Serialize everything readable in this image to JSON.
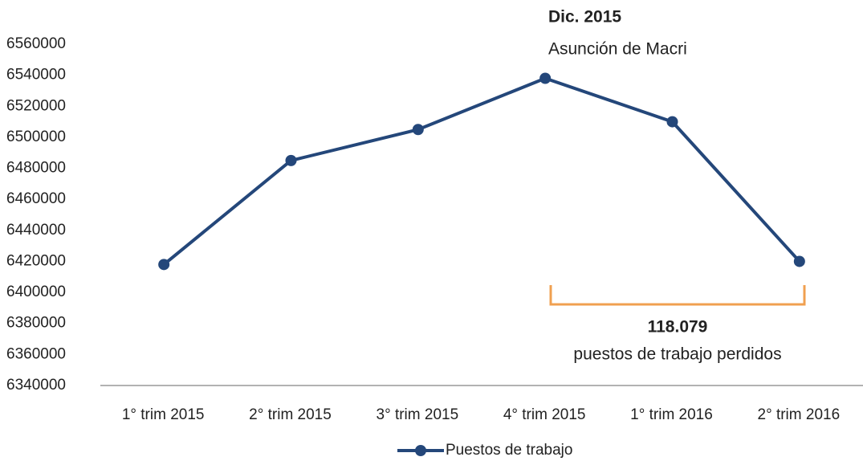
{
  "chart_data": {
    "type": "line",
    "categories": [
      "1° trim 2015",
      "2° trim 2015",
      "3° trim 2015",
      "4° trim 2015",
      "1° trim 2016",
      "2° trim 2016"
    ],
    "series": [
      {
        "name": "Puestos de trabajo",
        "color": "#24477a",
        "values": [
          6418000,
          6485000,
          6505000,
          6538000,
          6510000,
          6420000
        ]
      }
    ],
    "ylim": [
      6340000,
      6560000
    ],
    "yticks": [
      6340000,
      6360000,
      6380000,
      6400000,
      6420000,
      6440000,
      6460000,
      6480000,
      6500000,
      6520000,
      6540000,
      6560000
    ],
    "annotations": [
      {
        "title": "Dic. 2015",
        "text": "Asunción de Macri"
      },
      {
        "title": "118.079",
        "text": "puestos de trabajo perdidos"
      }
    ],
    "legend": "bottom"
  }
}
